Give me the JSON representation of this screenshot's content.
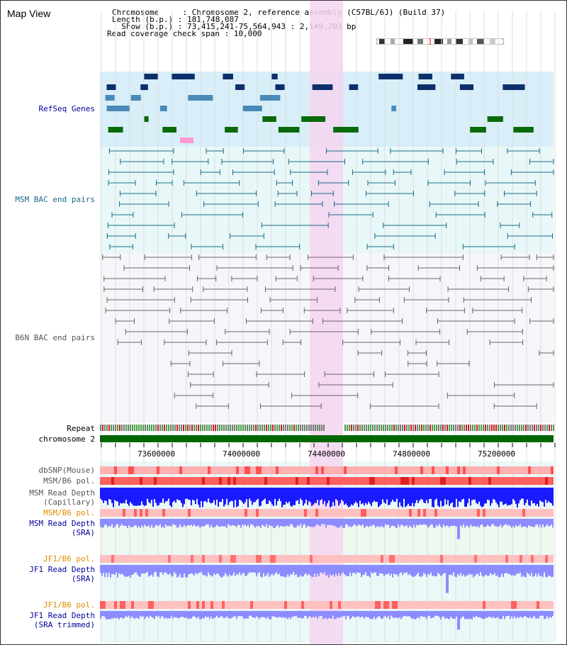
{
  "header": {
    "title": "Map View",
    "chromosome_line": "Chromosome     : Chromosome 2, reference assembly (C57BL/6J) (Build 37)",
    "length_line": "Length (b.p.) : 181,748,087",
    "show_line": "  Show (b.p.) : 73,415,241-75,564,943 : 2,149,703 bp",
    "coverage_line": "Read coverage check span : 10,000"
  },
  "tracks": {
    "refseq": "RefSeq Genes",
    "msm_bac": "MSM BAC end pairs",
    "b6n_bac": "B6N BAC end pairs",
    "repeat": "Repeat",
    "chromosome": "chromosome 2",
    "dbsnp": "dbSNP(Mouse)",
    "msm_b6_pol_1": "MSM/B6 pol.",
    "msm_read_depth_cap": "MSM Read Depth\n(Capillary)",
    "msm_b6_pol_2": "MSM/B6 pol.",
    "msm_read_depth_sra": "MSM Read Depth\n(SRA)",
    "jf1_b6_pol_1": "JF1/B6 pol.",
    "jf1_read_depth_sra": "JF1 Read Depth\n(SRA)",
    "jf1_b6_pol_2": "JF1/B6 pol.",
    "jf1_read_depth_trim": "JF1 Read Depth\n(SRA trimmed)"
  },
  "axis": {
    "ticks": [
      "73600000",
      "74000000",
      "74400000",
      "74800000",
      "75200000"
    ]
  },
  "colors": {
    "highlight": "#f5d6f0",
    "refseq_bg": "#d8eef8",
    "bac_bg": "#e8f8f8",
    "chrom_bar": "#006600",
    "snp": "#ff8080",
    "depth_blue": "#1a1aff",
    "depth_light": "#8c8cff"
  }
}
